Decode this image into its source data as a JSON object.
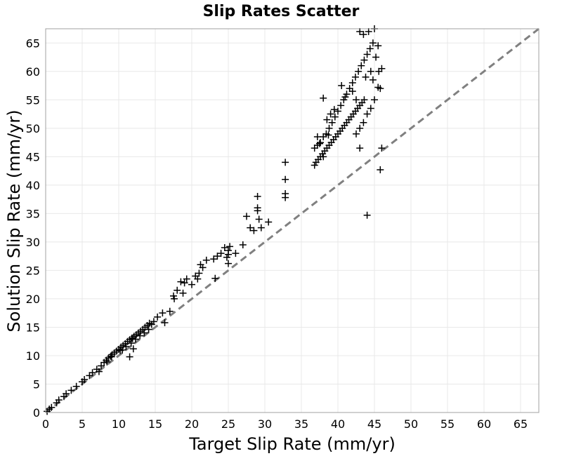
{
  "chart_data": {
    "type": "scatter",
    "title": "Slip Rates Scatter",
    "xlabel": "Target Slip Rate (mm/yr)",
    "ylabel": "Solution Slip Rate (mm/yr)",
    "xlim": [
      0,
      67.5
    ],
    "ylim": [
      0,
      67.5
    ],
    "xticks": [
      "0",
      "5",
      "10",
      "15",
      "20",
      "25",
      "30",
      "35",
      "40",
      "45",
      "50",
      "55",
      "60",
      "65"
    ],
    "yticks": [
      "0",
      "5",
      "10",
      "15",
      "20",
      "25",
      "30",
      "35",
      "40",
      "45",
      "50",
      "55",
      "60",
      "65"
    ],
    "grid": true,
    "marker": "plus",
    "marker_color": "#000000",
    "reference_line": {
      "style": "dashed",
      "color": "#808080",
      "x": [
        0,
        67.5
      ],
      "y": [
        0,
        67.5
      ]
    },
    "series": [
      {
        "points": [
          [
            0.2,
            0.2
          ],
          [
            0.5,
            0.6
          ],
          [
            0.8,
            0.9
          ],
          [
            1.5,
            1.7
          ],
          [
            1.8,
            2.2
          ],
          [
            2.5,
            2.8
          ],
          [
            2.8,
            3.3
          ],
          [
            3.5,
            3.9
          ],
          [
            4.2,
            4.6
          ],
          [
            5.0,
            5.4
          ],
          [
            5.3,
            5.8
          ],
          [
            6.0,
            6.5
          ],
          [
            6.4,
            7.0
          ],
          [
            7.0,
            7.6
          ],
          [
            7.6,
            8.2
          ],
          [
            8.0,
            8.8
          ],
          [
            8.3,
            9.2
          ],
          [
            8.6,
            9.6
          ],
          [
            8.9,
            9.9
          ],
          [
            9.1,
            10.2
          ],
          [
            9.4,
            10.5
          ],
          [
            9.7,
            10.8
          ],
          [
            10.0,
            11.1
          ],
          [
            10.3,
            11.5
          ],
          [
            10.6,
            11.8
          ],
          [
            10.9,
            12.1
          ],
          [
            11.2,
            12.5
          ],
          [
            11.5,
            12.8
          ],
          [
            11.8,
            13.1
          ],
          [
            12.1,
            13.4
          ],
          [
            12.4,
            13.7
          ],
          [
            12.7,
            14.0
          ],
          [
            13.0,
            14.3
          ],
          [
            13.3,
            14.6
          ],
          [
            13.6,
            15.0
          ],
          [
            13.9,
            15.3
          ],
          [
            14.2,
            15.7
          ],
          [
            14.8,
            16.0
          ],
          [
            15.3,
            16.8
          ],
          [
            16.0,
            17.5
          ],
          [
            9.0,
            9.8
          ],
          [
            10.2,
            10.9
          ],
          [
            11.0,
            11.6
          ],
          [
            11.7,
            12.2
          ],
          [
            12.3,
            12.9
          ],
          [
            12.9,
            13.5
          ],
          [
            13.5,
            14.0
          ],
          [
            14.1,
            14.6
          ],
          [
            11.5,
            9.8
          ],
          [
            12.0,
            11.2
          ],
          [
            14.5,
            15.5
          ],
          [
            16.3,
            15.8
          ],
          [
            8.4,
            8.9
          ],
          [
            7.3,
            7.2
          ],
          [
            10.5,
            11.0
          ],
          [
            11.9,
            13.0
          ],
          [
            17.5,
            20.5
          ],
          [
            17.6,
            20.0
          ],
          [
            18.0,
            21.5
          ],
          [
            18.5,
            23.0
          ],
          [
            19.0,
            22.8
          ],
          [
            19.3,
            23.5
          ],
          [
            20.0,
            22.5
          ],
          [
            20.5,
            24.0
          ],
          [
            21.0,
            24.5
          ],
          [
            21.2,
            26.0
          ],
          [
            21.5,
            25.5
          ],
          [
            22.0,
            26.8
          ],
          [
            23.0,
            27.0
          ],
          [
            23.5,
            27.5
          ],
          [
            24.0,
            28.0
          ],
          [
            24.5,
            29.0
          ],
          [
            25.0,
            28.5
          ],
          [
            25.2,
            29.2
          ],
          [
            25.0,
            27.8
          ],
          [
            25.0,
            26.2
          ],
          [
            24.8,
            27.3
          ],
          [
            18.8,
            21.0
          ],
          [
            20.8,
            23.5
          ],
          [
            17.0,
            17.8
          ],
          [
            26.0,
            28.0
          ],
          [
            27.0,
            29.5
          ],
          [
            27.5,
            34.5
          ],
          [
            28.0,
            32.5
          ],
          [
            28.5,
            32.0
          ],
          [
            29.0,
            35.5
          ],
          [
            29.0,
            36.0
          ],
          [
            29.2,
            34.0
          ],
          [
            29.5,
            32.5
          ],
          [
            30.5,
            33.5
          ],
          [
            29.0,
            38.0
          ],
          [
            32.8,
            44.0
          ],
          [
            32.8,
            41.0
          ],
          [
            32.8,
            38.5
          ],
          [
            32.8,
            37.8
          ],
          [
            23.2,
            23.6
          ],
          [
            36.8,
            43.5
          ],
          [
            37.0,
            44.0
          ],
          [
            37.3,
            44.5
          ],
          [
            37.6,
            45.0
          ],
          [
            37.9,
            45.5
          ],
          [
            38.2,
            46.0
          ],
          [
            38.5,
            46.5
          ],
          [
            38.8,
            47.0
          ],
          [
            39.1,
            47.5
          ],
          [
            39.4,
            48.0
          ],
          [
            39.7,
            48.5
          ],
          [
            40.0,
            49.0
          ],
          [
            40.3,
            49.5
          ],
          [
            40.6,
            50.0
          ],
          [
            40.9,
            50.5
          ],
          [
            41.2,
            51.0
          ],
          [
            41.5,
            51.5
          ],
          [
            41.8,
            52.0
          ],
          [
            42.1,
            52.5
          ],
          [
            42.4,
            53.0
          ],
          [
            42.7,
            53.5
          ],
          [
            43.0,
            54.0
          ],
          [
            43.3,
            54.5
          ],
          [
            43.6,
            55.0
          ],
          [
            36.8,
            46.5
          ],
          [
            37.2,
            47.0
          ],
          [
            37.6,
            47.5
          ],
          [
            38.0,
            48.5
          ],
          [
            38.4,
            49.0
          ],
          [
            38.8,
            50.0
          ],
          [
            39.2,
            51.0
          ],
          [
            39.6,
            52.0
          ],
          [
            40.0,
            53.0
          ],
          [
            40.4,
            54.0
          ],
          [
            40.8,
            55.0
          ],
          [
            41.2,
            56.0
          ],
          [
            41.6,
            57.0
          ],
          [
            42.0,
            58.0
          ],
          [
            42.4,
            59.0
          ],
          [
            42.8,
            60.0
          ],
          [
            43.2,
            61.0
          ],
          [
            43.6,
            62.0
          ],
          [
            44.0,
            63.0
          ],
          [
            44.4,
            64.0
          ],
          [
            44.8,
            65.0
          ],
          [
            43.0,
            67.0
          ],
          [
            43.5,
            66.5
          ],
          [
            44.2,
            67.0
          ],
          [
            45.0,
            67.5
          ],
          [
            45.5,
            64.5
          ],
          [
            45.2,
            62.5
          ],
          [
            45.6,
            60.0
          ],
          [
            46.0,
            60.5
          ],
          [
            45.8,
            57.0
          ],
          [
            45.5,
            57.2
          ],
          [
            45.0,
            55.0
          ],
          [
            44.5,
            53.5
          ],
          [
            44.0,
            52.5
          ],
          [
            43.5,
            51.0
          ],
          [
            43.0,
            50.0
          ],
          [
            42.5,
            49.0
          ],
          [
            38.0,
            55.3
          ],
          [
            39.5,
            53.3
          ],
          [
            38.5,
            51.5
          ],
          [
            39.0,
            52.5
          ],
          [
            40.5,
            57.5
          ],
          [
            41.0,
            55.5
          ],
          [
            42.0,
            56.5
          ],
          [
            42.5,
            55.0
          ],
          [
            43.8,
            59.0
          ],
          [
            44.5,
            60.0
          ],
          [
            44.8,
            58.5
          ],
          [
            43.0,
            46.5
          ],
          [
            45.8,
            42.7
          ],
          [
            46.0,
            46.5
          ],
          [
            44.0,
            34.7
          ],
          [
            37.2,
            48.5
          ],
          [
            38.7,
            48.8
          ],
          [
            37.5,
            47.3
          ],
          [
            38.0,
            45.0
          ]
        ]
      }
    ]
  }
}
